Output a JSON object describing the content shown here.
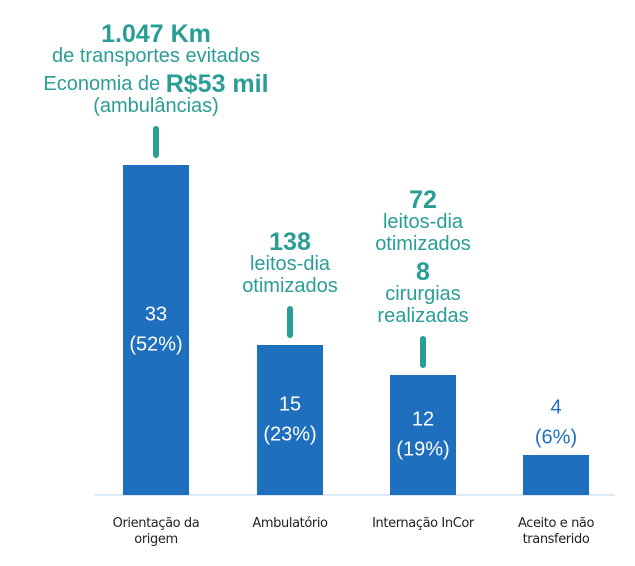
{
  "chart_data": {
    "type": "bar",
    "categories": [
      "Orientação da origem",
      "Ambulatório",
      "Internação InCor",
      "Aceito e não transferido"
    ],
    "values": [
      33,
      15,
      12,
      4
    ],
    "shares": [
      "(52%)",
      "(23%)",
      "(19%)",
      "(6%)"
    ],
    "color": "#1f6fbf",
    "annotation_color": "#2a9d96",
    "annotations": [
      [
        [
          {
            "text": "1.047 Km",
            "bold": true
          }
        ],
        [
          {
            "text": "de transportes evitados",
            "bold": false
          }
        ],
        [
          {
            "text": "Economia de ",
            "bold": false
          },
          {
            "text": "R$53 mil",
            "bold": true
          }
        ],
        [
          {
            "text": "(ambulâncias)",
            "bold": false
          }
        ]
      ],
      [
        [
          {
            "text": "138",
            "bold": true
          }
        ],
        [
          {
            "text": "leitos-dia",
            "bold": false
          }
        ],
        [
          {
            "text": "otimizados",
            "bold": false
          }
        ]
      ],
      [
        [
          {
            "text": "72",
            "bold": true
          }
        ],
        [
          {
            "text": "leitos-dia",
            "bold": false
          }
        ],
        [
          {
            "text": "otimizados",
            "bold": false
          }
        ],
        [
          {
            "text": "8",
            "bold": true
          }
        ],
        [
          {
            "text": "cirurgias",
            "bold": false
          }
        ],
        [
          {
            "text": "realizadas",
            "bold": false
          }
        ]
      ],
      null
    ]
  }
}
